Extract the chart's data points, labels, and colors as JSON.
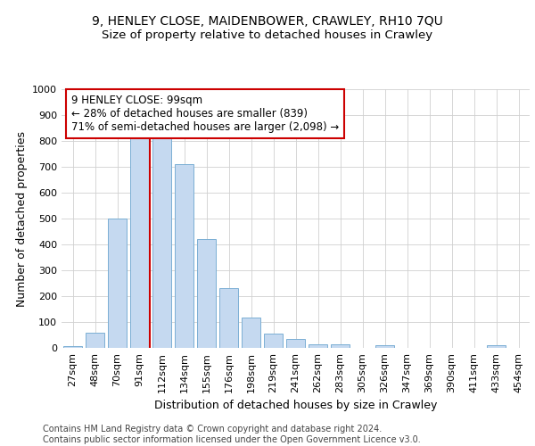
{
  "title": "9, HENLEY CLOSE, MAIDENBOWER, CRAWLEY, RH10 7QU",
  "subtitle": "Size of property relative to detached houses in Crawley",
  "xlabel": "Distribution of detached houses by size in Crawley",
  "ylabel": "Number of detached properties",
  "categories": [
    "27sqm",
    "48sqm",
    "70sqm",
    "91sqm",
    "112sqm",
    "134sqm",
    "155sqm",
    "176sqm",
    "198sqm",
    "219sqm",
    "241sqm",
    "262sqm",
    "283sqm",
    "305sqm",
    "326sqm",
    "347sqm",
    "369sqm",
    "390sqm",
    "411sqm",
    "433sqm",
    "454sqm"
  ],
  "values": [
    8,
    57,
    500,
    830,
    825,
    710,
    420,
    230,
    117,
    55,
    33,
    15,
    15,
    0,
    12,
    0,
    0,
    0,
    0,
    10,
    0
  ],
  "bar_color": "#c5d9f0",
  "bar_edge_color": "#7bafd4",
  "vline_color": "#cc0000",
  "annotation_text": "9 HENLEY CLOSE: 99sqm\n← 28% of detached houses are smaller (839)\n71% of semi-detached houses are larger (2,098) →",
  "annotation_box_color": "#ffffff",
  "annotation_box_edge_color": "#cc0000",
  "ylim": [
    0,
    1000
  ],
  "yticks": [
    0,
    100,
    200,
    300,
    400,
    500,
    600,
    700,
    800,
    900,
    1000
  ],
  "footer_text": "Contains HM Land Registry data © Crown copyright and database right 2024.\nContains public sector information licensed under the Open Government Licence v3.0.",
  "bg_color": "#ffffff",
  "grid_color": "#d0d0d0",
  "title_fontsize": 10,
  "subtitle_fontsize": 9.5,
  "axis_label_fontsize": 9,
  "tick_fontsize": 8,
  "annotation_fontsize": 8.5,
  "footer_fontsize": 7
}
